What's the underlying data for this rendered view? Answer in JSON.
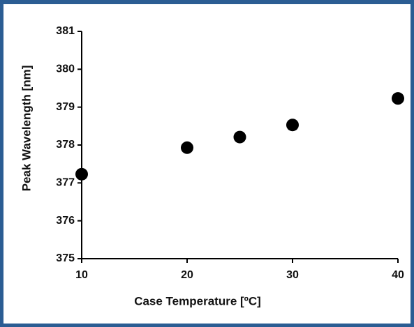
{
  "chart_data": {
    "type": "scatter",
    "xlabel": "Case Temperature [ºC]",
    "ylabel": "Peak Wavelength [nm]",
    "x": [
      10,
      20,
      25,
      30,
      40
    ],
    "values": [
      377.23,
      377.93,
      378.21,
      378.53,
      379.23
    ],
    "color": "#000000",
    "xlim": [
      10,
      40
    ],
    "xticks": [
      10,
      20,
      30,
      40
    ],
    "ylim": [
      375,
      381
    ],
    "yticks": [
      375,
      376,
      377,
      378,
      379,
      380,
      381
    ]
  }
}
